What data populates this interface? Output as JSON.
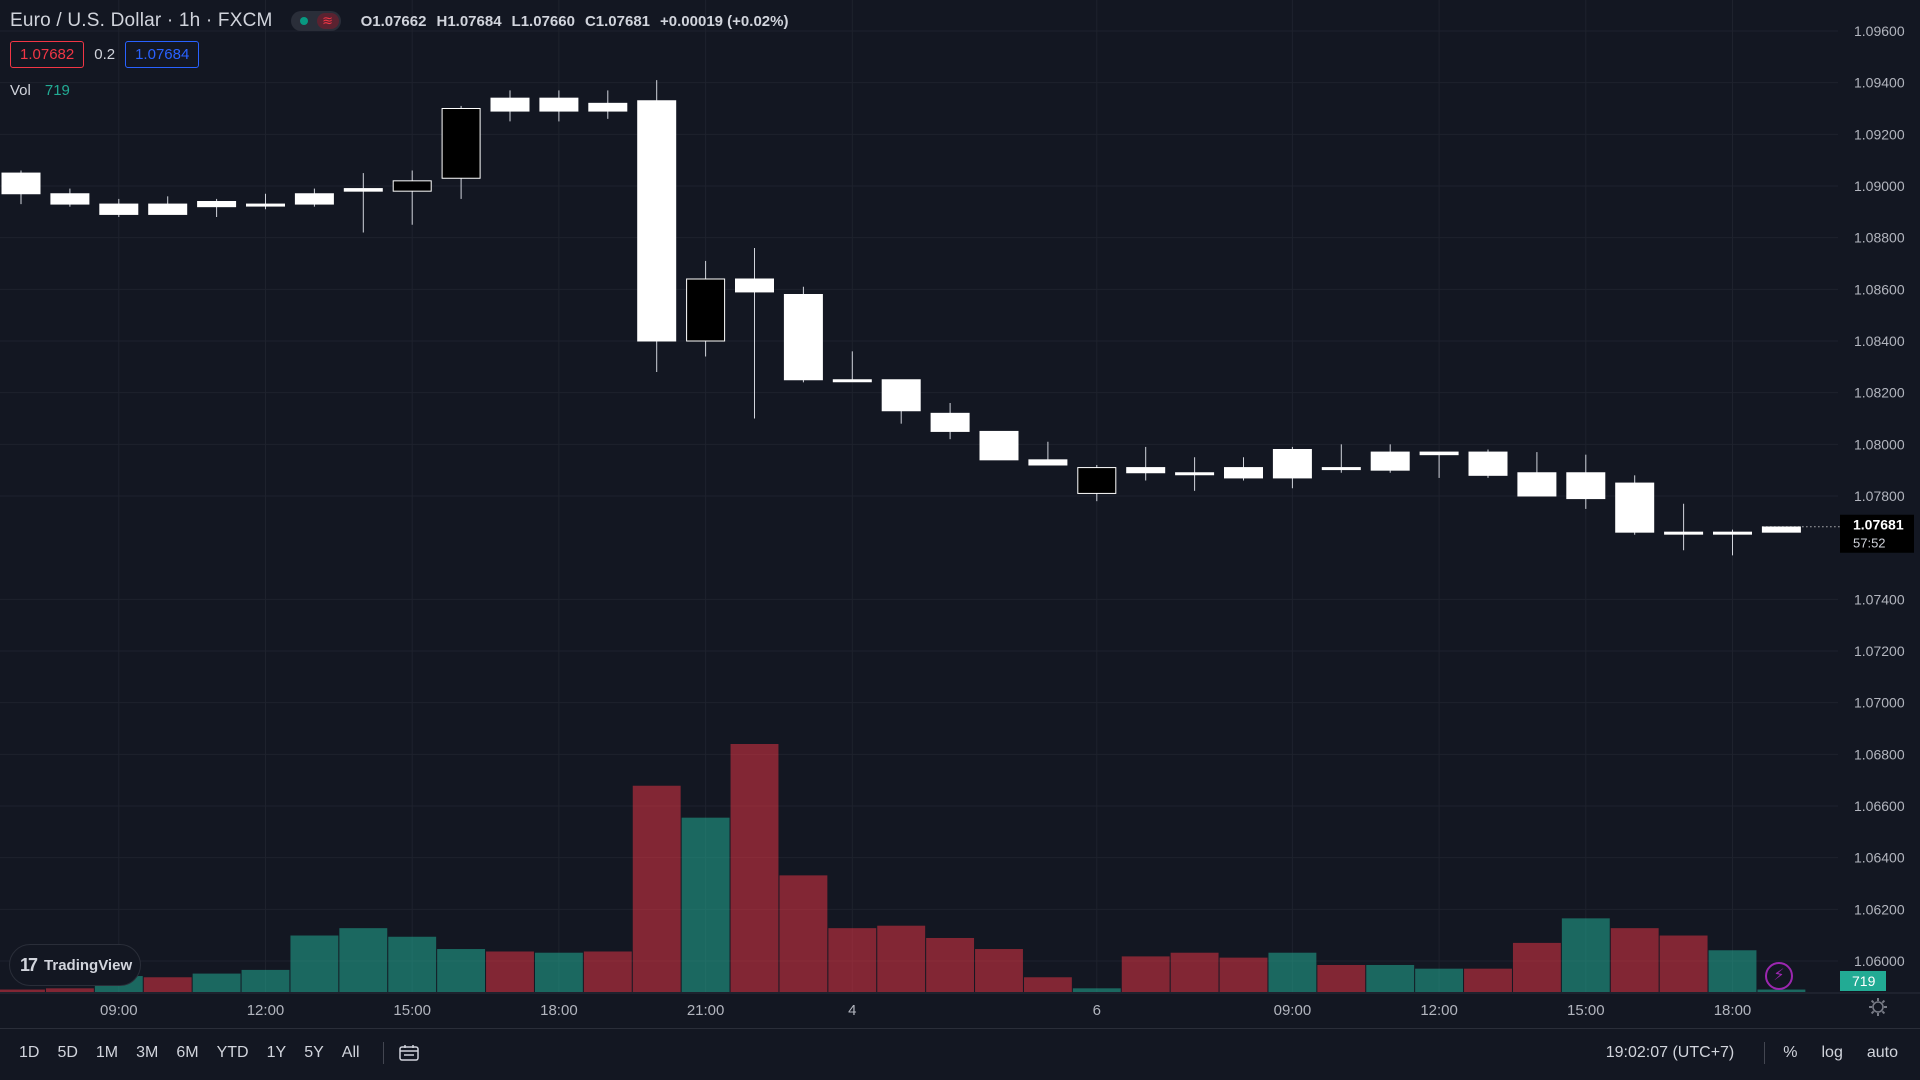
{
  "header": {
    "symbol": "Euro / U.S. Dollar · 1h · FXCM",
    "open_key": "O",
    "open": "1.07662",
    "high_key": "H",
    "high": "1.07684",
    "low_key": "L",
    "low": "1.07660",
    "close_key": "C",
    "close": "1.07681",
    "change": "+0.00019 (+0.02%)"
  },
  "quote": {
    "bid": "1.07682",
    "spread": "0.2",
    "ask": "1.07684"
  },
  "volume_legend": {
    "label": "Vol",
    "value": "719"
  },
  "price_label": {
    "price": "1.07681",
    "countdown": "57:52"
  },
  "volume_label": "719",
  "logo": {
    "text": "TradingView",
    "icon": "tradingview-logo-icon"
  },
  "bottom_bar": {
    "ranges": [
      "1D",
      "5D",
      "1M",
      "3M",
      "6M",
      "YTD",
      "1Y",
      "5Y",
      "All"
    ],
    "date_range_icon": "calendar-range-icon",
    "clock": "19:02:07 (UTC+7)",
    "percent": "%",
    "log": "log",
    "auto": "auto"
  },
  "icons": {
    "settings": "gear-icon",
    "alert": "lightning-icon",
    "market_status": "market-status-icon"
  },
  "colors": {
    "bg": "#131722",
    "up_volume": "#22ab94",
    "down_volume": "#f23645",
    "candle_up": "#ffffff",
    "candle_down": "#000000",
    "grid": "#1e222d",
    "text": "#d1d4dc"
  },
  "chart_data": {
    "type": "candlestick",
    "price_axis": {
      "ticks": [
        "1.09600",
        "1.09400",
        "1.09200",
        "1.09000",
        "1.08800",
        "1.08600",
        "1.08400",
        "1.08200",
        "1.08000",
        "1.07800",
        "1.07400",
        "1.07200",
        "1.07000",
        "1.06800",
        "1.06600",
        "1.06400",
        "1.06200",
        "1.06000"
      ],
      "range": [
        1.0588,
        1.0972
      ]
    },
    "time_axis": {
      "labels": [
        {
          "label": "09:00",
          "index": 2
        },
        {
          "label": "12:00",
          "index": 5
        },
        {
          "label": "15:00",
          "index": 8
        },
        {
          "label": "18:00",
          "index": 11
        },
        {
          "label": "21:00",
          "index": 14
        },
        {
          "label": "4",
          "index": 17
        },
        {
          "label": "6",
          "index": 22
        },
        {
          "label": "09:00",
          "index": 26
        },
        {
          "label": "12:00",
          "index": 29
        },
        {
          "label": "15:00",
          "index": 32
        },
        {
          "label": "18:00",
          "index": 35
        }
      ]
    },
    "candles": [
      {
        "o": 1.0897,
        "h": 1.0906,
        "l": 1.0893,
        "c": 1.0905
      },
      {
        "o": 1.0893,
        "h": 1.0899,
        "l": 1.0892,
        "c": 1.0897
      },
      {
        "o": 1.0889,
        "h": 1.0895,
        "l": 1.0888,
        "c": 1.0893
      },
      {
        "o": 1.0889,
        "h": 1.0896,
        "l": 1.0889,
        "c": 1.0893
      },
      {
        "o": 1.0892,
        "h": 1.0895,
        "l": 1.0888,
        "c": 1.0894
      },
      {
        "o": 1.0893,
        "h": 1.0897,
        "l": 1.0891,
        "c": 1.0893
      },
      {
        "o": 1.0893,
        "h": 1.0899,
        "l": 1.0892,
        "c": 1.0897
      },
      {
        "o": 1.0898,
        "h": 1.0905,
        "l": 1.0882,
        "c": 1.0899
      },
      {
        "o": 1.0902,
        "h": 1.0906,
        "l": 1.0885,
        "c": 1.0898
      },
      {
        "o": 1.093,
        "h": 1.0931,
        "l": 1.0895,
        "c": 1.0903
      },
      {
        "o": 1.0929,
        "h": 1.0937,
        "l": 1.0925,
        "c": 1.0934
      },
      {
        "o": 1.0929,
        "h": 1.0937,
        "l": 1.0925,
        "c": 1.0934
      },
      {
        "o": 1.0929,
        "h": 1.0937,
        "l": 1.0926,
        "c": 1.0932
      },
      {
        "o": 1.084,
        "h": 1.0941,
        "l": 1.0828,
        "c": 1.0933
      },
      {
        "o": 1.0864,
        "h": 1.0871,
        "l": 1.0834,
        "c": 1.084
      },
      {
        "o": 1.0859,
        "h": 1.0876,
        "l": 1.081,
        "c": 1.0864
      },
      {
        "o": 1.0825,
        "h": 1.0861,
        "l": 1.0824,
        "c": 1.0858
      },
      {
        "o": 1.0825,
        "h": 1.0836,
        "l": 1.0825,
        "c": 1.0825
      },
      {
        "o": 1.0813,
        "h": 1.0825,
        "l": 1.0808,
        "c": 1.0825
      },
      {
        "o": 1.0805,
        "h": 1.0816,
        "l": 1.0802,
        "c": 1.0812
      },
      {
        "o": 1.0794,
        "h": 1.0805,
        "l": 1.0794,
        "c": 1.0805
      },
      {
        "o": 1.0792,
        "h": 1.0801,
        "l": 1.0792,
        "c": 1.0794
      },
      {
        "o": 1.0791,
        "h": 1.0792,
        "l": 1.0778,
        "c": 1.0781
      },
      {
        "o": 1.0789,
        "h": 1.0799,
        "l": 1.0786,
        "c": 1.0791
      },
      {
        "o": 1.0789,
        "h": 1.0795,
        "l": 1.0782,
        "c": 1.0789
      },
      {
        "o": 1.0787,
        "h": 1.0795,
        "l": 1.0786,
        "c": 1.0791
      },
      {
        "o": 1.0787,
        "h": 1.0799,
        "l": 1.0783,
        "c": 1.0798
      },
      {
        "o": 1.0791,
        "h": 1.08,
        "l": 1.0789,
        "c": 1.0791
      },
      {
        "o": 1.079,
        "h": 1.08,
        "l": 1.0789,
        "c": 1.0797
      },
      {
        "o": 1.0796,
        "h": 1.0797,
        "l": 1.0787,
        "c": 1.0797
      },
      {
        "o": 1.0788,
        "h": 1.0798,
        "l": 1.0787,
        "c": 1.0797
      },
      {
        "o": 1.078,
        "h": 1.0797,
        "l": 1.078,
        "c": 1.0789
      },
      {
        "o": 1.0779,
        "h": 1.0796,
        "l": 1.0775,
        "c": 1.0789
      },
      {
        "o": 1.0766,
        "h": 1.0788,
        "l": 1.0765,
        "c": 1.0785
      },
      {
        "o": 1.0766,
        "h": 1.0777,
        "l": 1.0759,
        "c": 1.0766
      },
      {
        "o": 1.0766,
        "h": 1.0767,
        "l": 1.0757,
        "c": 1.0766
      },
      {
        "o": 1.0766,
        "h": 1.0768,
        "l": 1.0766,
        "c": 1.0768
      }
    ],
    "volume": [
      {
        "v": 2,
        "dir": "down"
      },
      {
        "v": 3,
        "dir": "down"
      },
      {
        "v": 13,
        "dir": "up"
      },
      {
        "v": 12,
        "dir": "down"
      },
      {
        "v": 15,
        "dir": "up"
      },
      {
        "v": 18,
        "dir": "up"
      },
      {
        "v": 46,
        "dir": "up"
      },
      {
        "v": 52,
        "dir": "up"
      },
      {
        "v": 45,
        "dir": "up"
      },
      {
        "v": 35,
        "dir": "up"
      },
      {
        "v": 33,
        "dir": "down"
      },
      {
        "v": 32,
        "dir": "up"
      },
      {
        "v": 33,
        "dir": "down"
      },
      {
        "v": 168,
        "dir": "down"
      },
      {
        "v": 142,
        "dir": "up"
      },
      {
        "v": 202,
        "dir": "down"
      },
      {
        "v": 95,
        "dir": "down"
      },
      {
        "v": 52,
        "dir": "down"
      },
      {
        "v": 54,
        "dir": "down"
      },
      {
        "v": 44,
        "dir": "down"
      },
      {
        "v": 35,
        "dir": "down"
      },
      {
        "v": 12,
        "dir": "down"
      },
      {
        "v": 3,
        "dir": "up"
      },
      {
        "v": 29,
        "dir": "down"
      },
      {
        "v": 32,
        "dir": "down"
      },
      {
        "v": 28,
        "dir": "down"
      },
      {
        "v": 32,
        "dir": "up"
      },
      {
        "v": 22,
        "dir": "down"
      },
      {
        "v": 22,
        "dir": "up"
      },
      {
        "v": 19,
        "dir": "up"
      },
      {
        "v": 19,
        "dir": "down"
      },
      {
        "v": 40,
        "dir": "down"
      },
      {
        "v": 60,
        "dir": "up"
      },
      {
        "v": 52,
        "dir": "down"
      },
      {
        "v": 46,
        "dir": "down"
      },
      {
        "v": 34,
        "dir": "up"
      },
      {
        "v": 2,
        "dir": "up"
      }
    ],
    "volume_max": 202,
    "last_price": 1.07681
  }
}
